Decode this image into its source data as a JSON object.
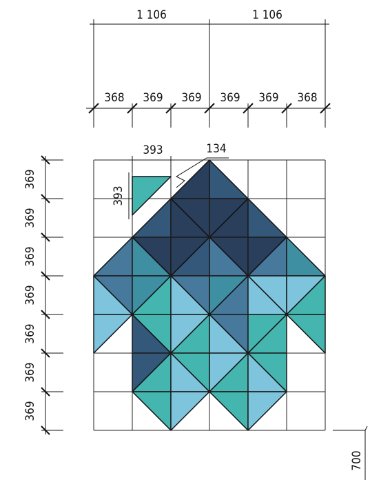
{
  "dimensions": {
    "top_total": [
      "1 106",
      "1 106"
    ],
    "top_parts": [
      "368",
      "369",
      "369",
      "369",
      "369",
      "368"
    ],
    "left_parts": [
      "369",
      "369",
      "369",
      "369",
      "369",
      "369",
      "369"
    ],
    "tile_width": "393",
    "tile_height": "393",
    "offset": "134",
    "bottom": "700"
  }
}
